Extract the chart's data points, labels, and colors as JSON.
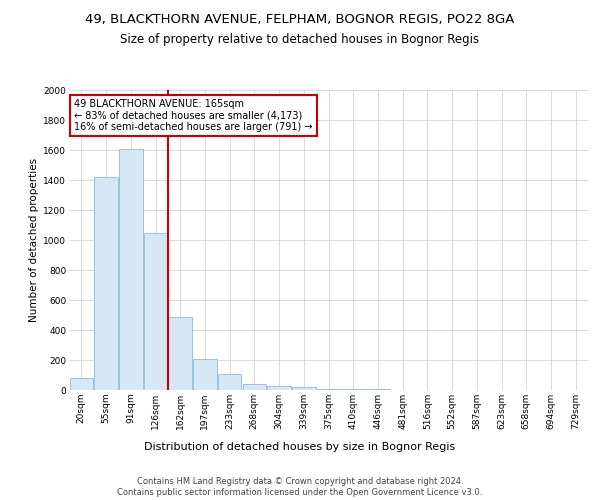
{
  "title1": "49, BLACKTHORN AVENUE, FELPHAM, BOGNOR REGIS, PO22 8GA",
  "title2": "Size of property relative to detached houses in Bognor Regis",
  "xlabel": "Distribution of detached houses by size in Bognor Regis",
  "ylabel": "Number of detached properties",
  "categories": [
    "20sqm",
    "55sqm",
    "91sqm",
    "126sqm",
    "162sqm",
    "197sqm",
    "233sqm",
    "268sqm",
    "304sqm",
    "339sqm",
    "375sqm",
    "410sqm",
    "446sqm",
    "481sqm",
    "516sqm",
    "552sqm",
    "587sqm",
    "623sqm",
    "658sqm",
    "694sqm",
    "729sqm"
  ],
  "values": [
    80,
    1420,
    1610,
    1050,
    490,
    205,
    105,
    42,
    27,
    18,
    10,
    8,
    4,
    2,
    1,
    1,
    0,
    0,
    0,
    0,
    0
  ],
  "bar_color": "#d6e8f5",
  "bar_edge_color": "#7ab0d4",
  "vline_color": "#cc0000",
  "annotation_text": "49 BLACKTHORN AVENUE: 165sqm\n← 83% of detached houses are smaller (4,173)\n16% of semi-detached houses are larger (791) →",
  "annotation_box_color": "#cc0000",
  "ylim": [
    0,
    2000
  ],
  "yticks": [
    0,
    200,
    400,
    600,
    800,
    1000,
    1200,
    1400,
    1600,
    1800,
    2000
  ],
  "background_color": "#ffffff",
  "grid_color": "#cccccc",
  "footer_text": "Contains HM Land Registry data © Crown copyright and database right 2024.\nContains public sector information licensed under the Open Government Licence v3.0.",
  "title1_fontsize": 9.5,
  "title2_fontsize": 8.5,
  "xlabel_fontsize": 8,
  "ylabel_fontsize": 7.5,
  "tick_fontsize": 6.5,
  "annotation_fontsize": 7,
  "footer_fontsize": 6
}
